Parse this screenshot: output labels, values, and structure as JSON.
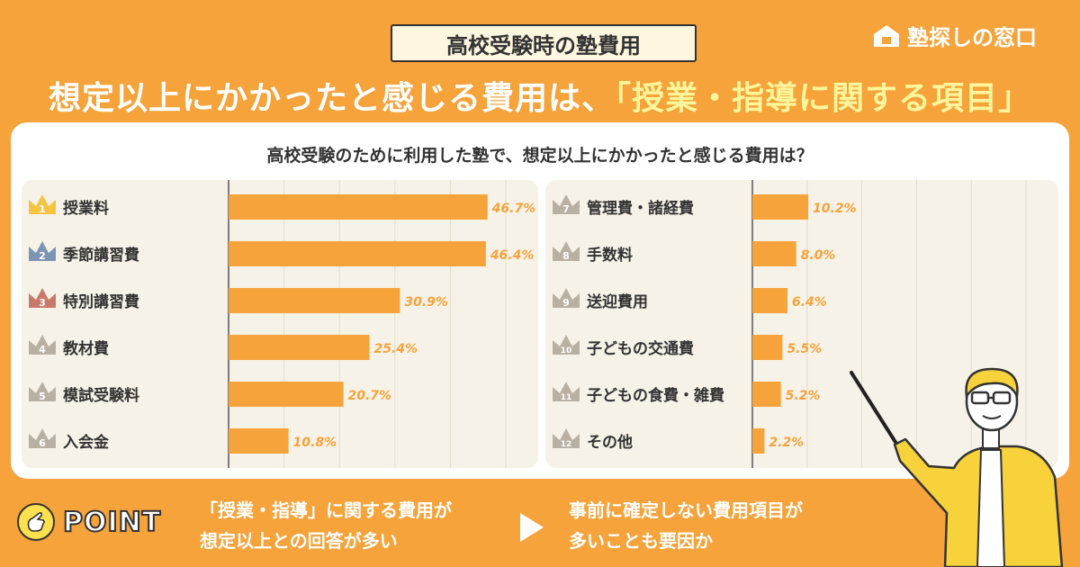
{
  "tag": "高校受験時の塾費用",
  "logo": "塾探しの窓口",
  "headline": {
    "main": "想定以上にかかったと感じる費用は、",
    "highlight": "「授業・指導に関する項目」"
  },
  "question": "高校受験のために利用した塾で、想定以上にかかったと感じる費用は？",
  "point": {
    "label": "POINT",
    "message1": [
      "「授業・指導」に関する費用が",
      "想定以上との回答が多い"
    ],
    "message2": [
      "事前に確定しない費用項目が",
      "多いことも要因か"
    ]
  },
  "colors": {
    "bar": "#F5A33A",
    "background": "#F5A33A",
    "rank1": "#F5C443",
    "rank2": "#7D95B3",
    "rank3": "#C77A6A",
    "rankOther": "#B8B0A2"
  },
  "chart_data": [
    {
      "type": "bar",
      "orientation": "horizontal",
      "categories": [
        "授業料",
        "季節講習費",
        "特別講習費",
        "教材費",
        "模試受験料",
        "入会金"
      ],
      "ranks": [
        "1",
        "2",
        "3",
        "4",
        "5",
        "6"
      ],
      "values": [
        46.7,
        46.4,
        30.9,
        25.4,
        20.7,
        10.8
      ],
      "labels": [
        "46.7%",
        "46.4%",
        "30.9%",
        "25.4%",
        "20.7%",
        "10.8%"
      ],
      "xlim": [
        0,
        50
      ],
      "grid": true
    },
    {
      "type": "bar",
      "orientation": "horizontal",
      "categories": [
        "管理費・諸経費",
        "手数料",
        "送迎費用",
        "子どもの交通費",
        "子どもの食費・雑費",
        "その他"
      ],
      "ranks": [
        "7",
        "8",
        "9",
        "10",
        "11",
        "12"
      ],
      "values": [
        10.2,
        8.0,
        6.4,
        5.5,
        5.2,
        2.2
      ],
      "labels": [
        "10.2%",
        "8.0%",
        "6.4%",
        "5.5%",
        "5.2%",
        "2.2%"
      ],
      "xlim": [
        0,
        50
      ],
      "grid": true
    }
  ]
}
